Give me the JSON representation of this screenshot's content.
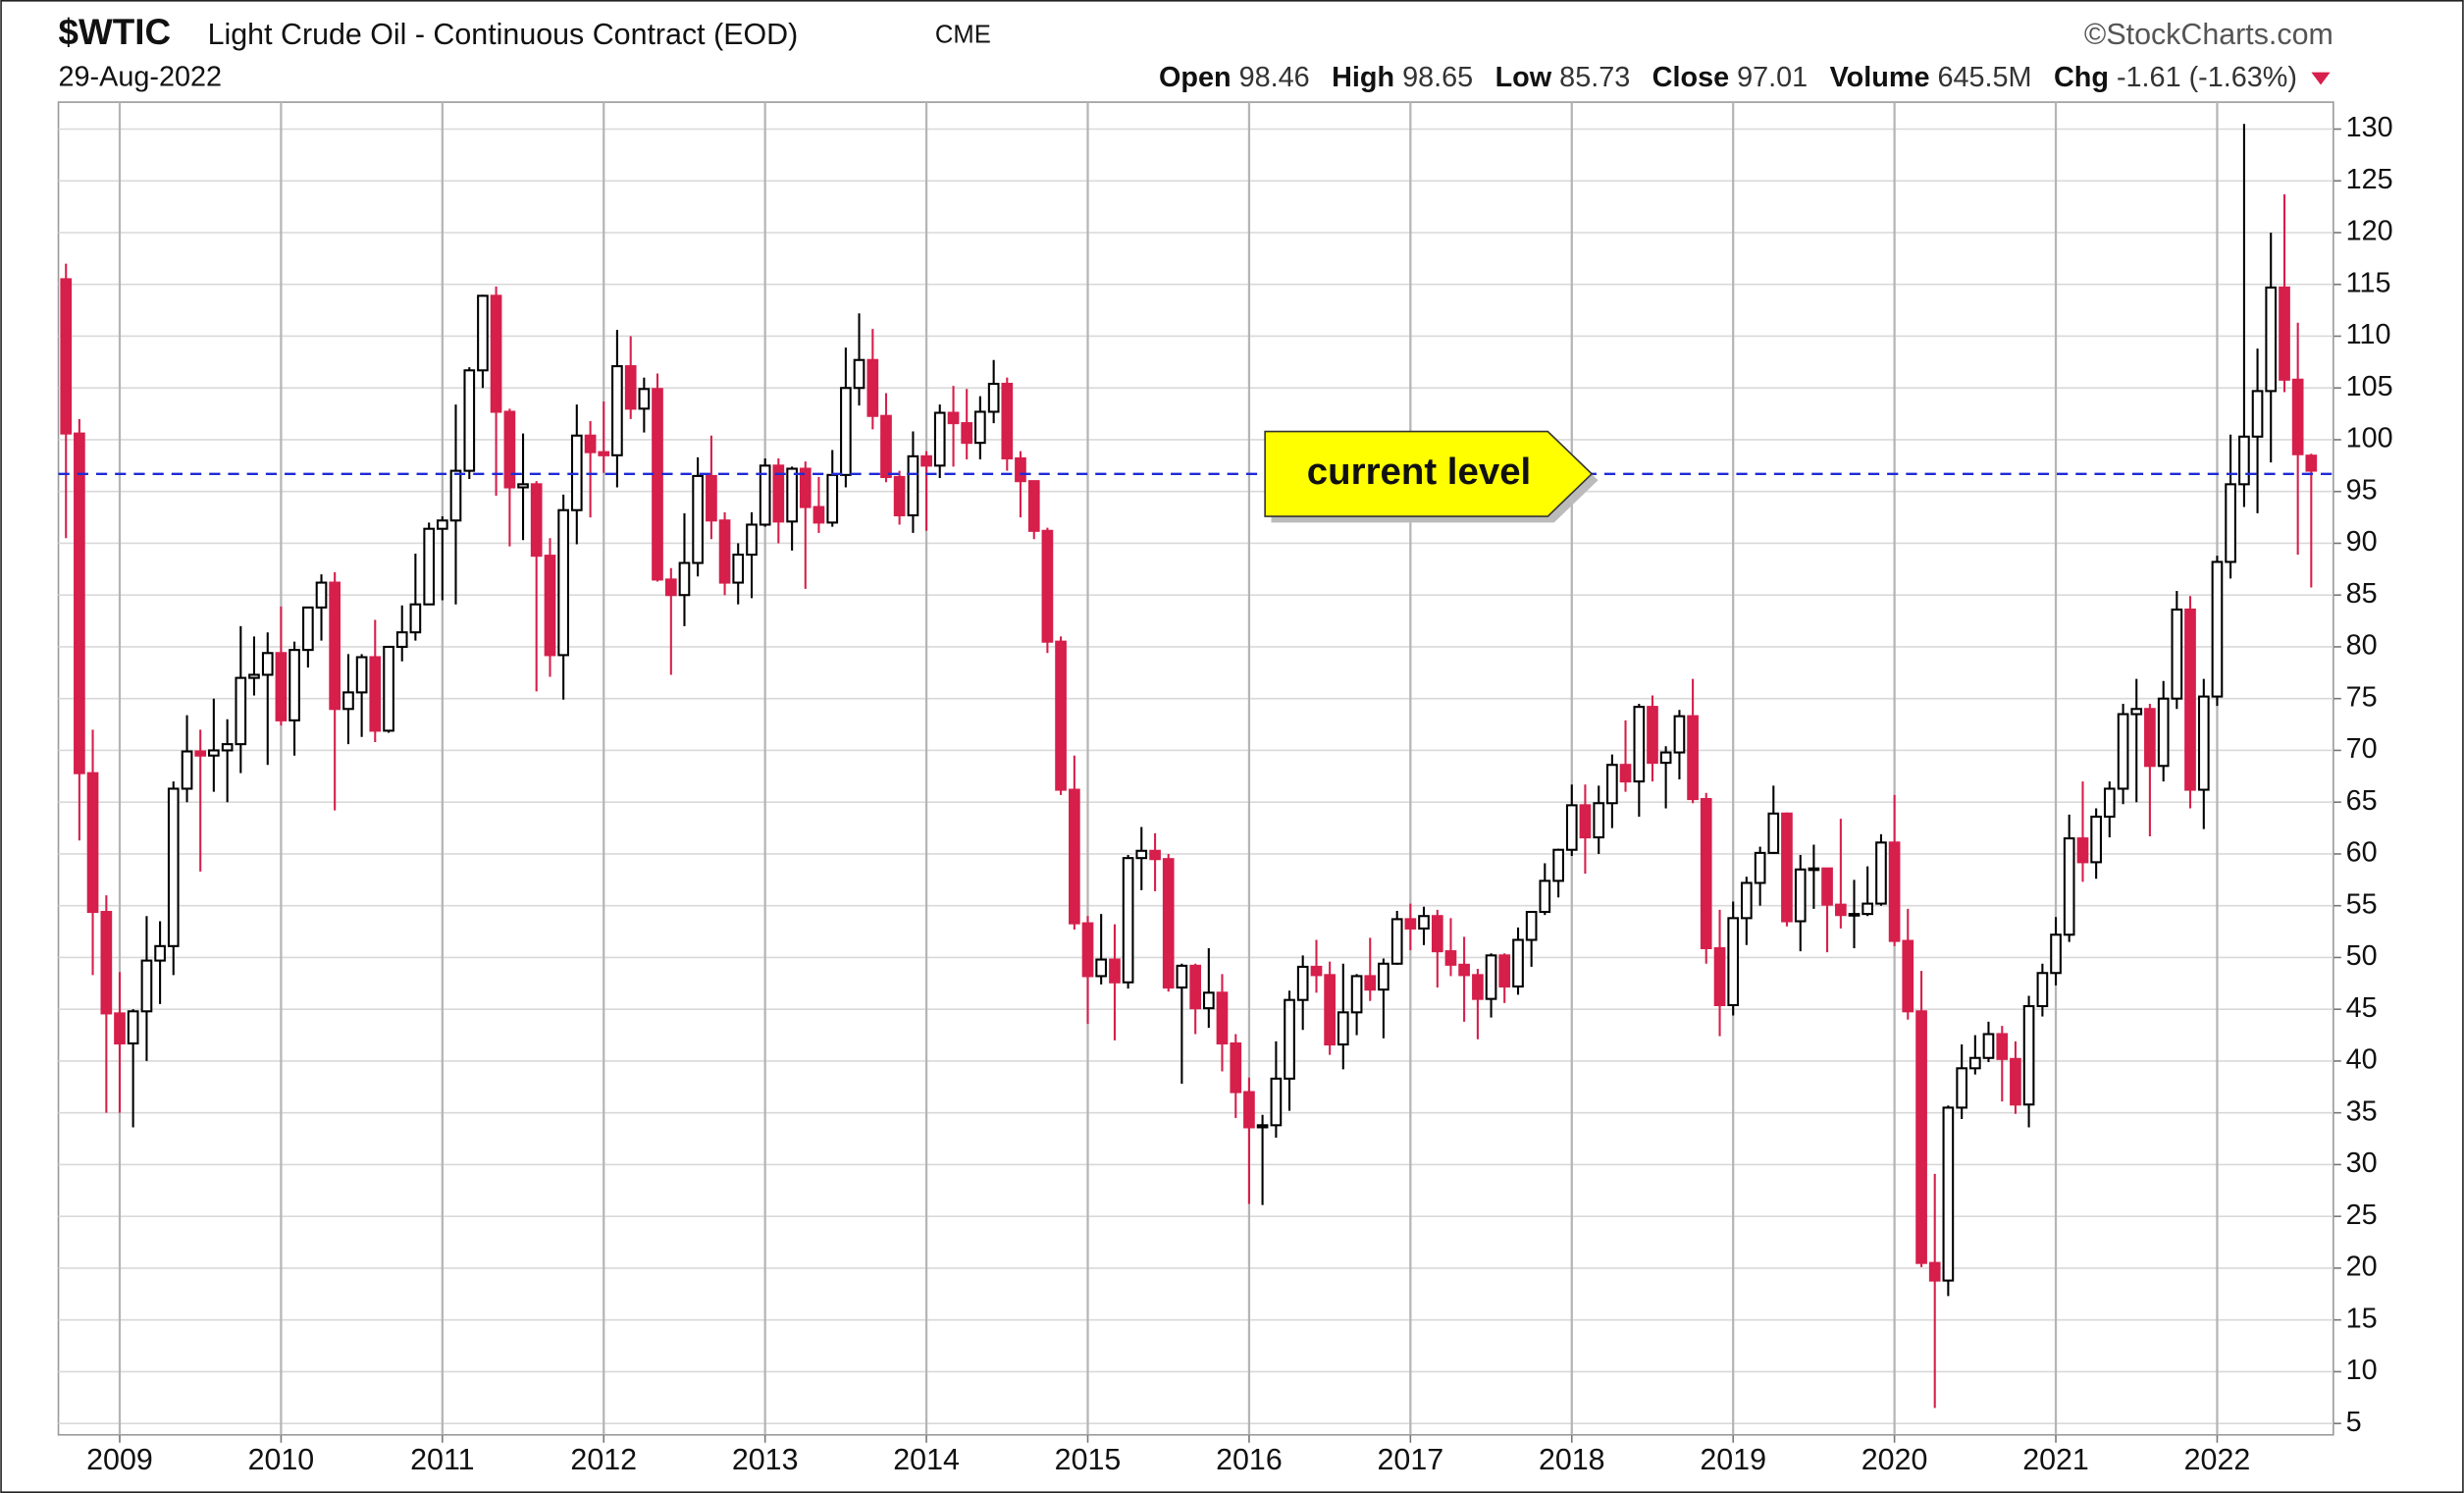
{
  "chart_data": {
    "type": "candlestick",
    "info": {
      "ticker": "$WTIC",
      "name": "Light Crude Oil - Continuous Contract (EOD)",
      "exchange": "CME",
      "source": "©StockCharts.com",
      "date": "29-Aug-2022",
      "stats": [
        {
          "label": "Open",
          "value": 98.46
        },
        {
          "label": "High",
          "value": 98.65
        },
        {
          "label": "Low",
          "value": 85.73
        },
        {
          "label": "Close",
          "value": 97.01
        },
        {
          "label": "Volume",
          "value": "645.5M"
        },
        {
          "label": "Chg",
          "value": "-1.61 (-1.63%)"
        }
      ]
    },
    "up_color": "#000000",
    "down_color": "#d61f4b",
    "reference_line": {
      "value": 96.7,
      "color": "#1f2bd6"
    },
    "annotation": {
      "text": "current level",
      "color": "#ffff00"
    },
    "grid": true,
    "xlim": [
      2008.62,
      2022.72
    ],
    "xticks": [
      2009,
      2010,
      2011,
      2012,
      2013,
      2014,
      2015,
      2016,
      2017,
      2018,
      2019,
      2020,
      2021,
      2022
    ],
    "ylim": [
      3.9,
      132.6
    ],
    "yticks": [
      5,
      10,
      15,
      20,
      25,
      30,
      35,
      40,
      45,
      50,
      55,
      60,
      65,
      70,
      75,
      80,
      85,
      90,
      95,
      100,
      105,
      110,
      115,
      120,
      125,
      130
    ],
    "x": [
      2008.667,
      2008.75,
      2008.833,
      2008.917,
      2009,
      2009.083,
      2009.167,
      2009.25,
      2009.333,
      2009.417,
      2009.5,
      2009.583,
      2009.667,
      2009.75,
      2009.833,
      2009.917,
      2010,
      2010.083,
      2010.167,
      2010.25,
      2010.333,
      2010.417,
      2010.5,
      2010.583,
      2010.667,
      2010.75,
      2010.833,
      2010.917,
      2011,
      2011.083,
      2011.167,
      2011.25,
      2011.333,
      2011.417,
      2011.5,
      2011.583,
      2011.667,
      2011.75,
      2011.833,
      2011.917,
      2012,
      2012.083,
      2012.167,
      2012.25,
      2012.333,
      2012.417,
      2012.5,
      2012.583,
      2012.667,
      2012.75,
      2012.833,
      2012.917,
      2013,
      2013.083,
      2013.167,
      2013.25,
      2013.333,
      2013.417,
      2013.5,
      2013.583,
      2013.667,
      2013.75,
      2013.833,
      2013.917,
      2014,
      2014.083,
      2014.167,
      2014.25,
      2014.333,
      2014.417,
      2014.5,
      2014.583,
      2014.667,
      2014.75,
      2014.833,
      2014.917,
      2015,
      2015.083,
      2015.167,
      2015.25,
      2015.333,
      2015.417,
      2015.5,
      2015.583,
      2015.667,
      2015.75,
      2015.833,
      2015.917,
      2016,
      2016.083,
      2016.167,
      2016.25,
      2016.333,
      2016.417,
      2016.5,
      2016.583,
      2016.667,
      2016.75,
      2016.833,
      2016.917,
      2017,
      2017.083,
      2017.167,
      2017.25,
      2017.333,
      2017.417,
      2017.5,
      2017.583,
      2017.667,
      2017.75,
      2017.833,
      2017.917,
      2018,
      2018.083,
      2018.167,
      2018.25,
      2018.333,
      2018.417,
      2018.5,
      2018.583,
      2018.667,
      2018.75,
      2018.833,
      2018.917,
      2019,
      2019.083,
      2019.167,
      2019.25,
      2019.333,
      2019.417,
      2019.5,
      2019.583,
      2019.667,
      2019.75,
      2019.833,
      2019.917,
      2020,
      2020.083,
      2020.167,
      2020.25,
      2020.333,
      2020.417,
      2020.5,
      2020.583,
      2020.667,
      2020.75,
      2020.833,
      2020.917,
      2021,
      2021.083,
      2021.167,
      2021.25,
      2021.333,
      2021.417,
      2021.5,
      2021.583,
      2021.667,
      2021.75,
      2021.833,
      2021.917,
      2022,
      2022.083,
      2022.167,
      2022.25,
      2022.333,
      2022.417,
      2022.5,
      2022.583
    ],
    "open": [
      115.5,
      100.6,
      67.8,
      54.4,
      44.6,
      41.7,
      44.8,
      49.7,
      51.1,
      66.3,
      69.9,
      69.5,
      70.0,
      70.6,
      77.0,
      77.3,
      79.4,
      72.9,
      79.7,
      83.8,
      86.2,
      74.0,
      75.6,
      79.0,
      71.9,
      80.0,
      81.4,
      84.1,
      91.4,
      92.2,
      97.0,
      106.7,
      113.9,
      102.7,
      95.4,
      95.7,
      88.8,
      79.2,
      93.2,
      100.4,
      98.8,
      98.5,
      107.1,
      103.0,
      104.9,
      86.5,
      85.0,
      88.1,
      96.5,
      92.2,
      86.2,
      88.9,
      91.8,
      97.5,
      92.1,
      97.2,
      93.5,
      92.0,
      96.6,
      105.0,
      107.7,
      102.3,
      96.4,
      92.7,
      98.4,
      97.5,
      102.6,
      101.6,
      99.7,
      102.7,
      105.4,
      98.2,
      96.0,
      91.2,
      80.5,
      66.2,
      53.3,
      48.2,
      49.8,
      47.6,
      59.6,
      60.3,
      59.5,
      47.1,
      49.2,
      45.1,
      46.6,
      41.7,
      37.0,
      33.6,
      33.8,
      38.3,
      45.9,
      49.1,
      48.3,
      41.6,
      44.7,
      48.2,
      46.9,
      49.4,
      53.7,
      52.8,
      54.0,
      50.6,
      49.3,
      48.3,
      46.0,
      50.2,
      47.2,
      51.7,
      54.4,
      57.4,
      60.4,
      64.7,
      61.6,
      64.9,
      68.6,
      67.0,
      74.2,
      68.8,
      69.8,
      73.3,
      65.3,
      50.9,
      45.4,
      53.8,
      57.2,
      60.1,
      63.9,
      53.5,
      58.5,
      58.6,
      55.1,
      54.1,
      54.2,
      55.2,
      61.1,
      51.6,
      44.8,
      20.5,
      18.8,
      35.5,
      39.3,
      40.3,
      42.6,
      40.2,
      35.8,
      45.3,
      48.5,
      52.2,
      61.5,
      59.2,
      63.6,
      66.3,
      73.5,
      74.0,
      68.5,
      75.0,
      83.6,
      66.2,
      75.2,
      88.2,
      95.7,
      100.3,
      104.7,
      114.7,
      105.8,
      98.46
    ],
    "high": [
      117.0,
      102.0,
      72.0,
      56.0,
      48.6,
      45.0,
      54.0,
      53.5,
      67.0,
      73.4,
      72.0,
      75.0,
      73.0,
      82.0,
      81.0,
      81.4,
      83.9,
      80.5,
      83.2,
      87.0,
      87.2,
      79.3,
      79.3,
      82.6,
      80.0,
      84.0,
      89.0,
      92.0,
      92.6,
      103.4,
      107.0,
      114.0,
      114.8,
      103.0,
      100.6,
      96.0,
      90.5,
      94.7,
      103.4,
      101.8,
      103.7,
      110.6,
      110.0,
      106.0,
      106.4,
      87.6,
      92.9,
      98.3,
      100.4,
      93.0,
      90.0,
      93.0,
      98.2,
      98.2,
      97.4,
      97.9,
      96.4,
      99.0,
      108.9,
      112.2,
      110.7,
      104.5,
      97.0,
      100.8,
      98.9,
      103.4,
      105.2,
      104.9,
      104.2,
      107.7,
      106.0,
      98.9,
      96.0,
      91.5,
      81.0,
      69.5,
      54.0,
      54.2,
      53.2,
      59.9,
      62.6,
      62.0,
      60.0,
      49.4,
      49.4,
      50.9,
      48.4,
      42.6,
      38.4,
      34.8,
      41.9,
      46.8,
      50.2,
      51.7,
      49.6,
      49.4,
      48.4,
      51.9,
      49.9,
      54.5,
      55.2,
      54.9,
      54.6,
      53.8,
      52.0,
      48.9,
      50.4,
      50.4,
      52.9,
      54.5,
      59.1,
      60.5,
      66.7,
      66.7,
      66.6,
      69.6,
      72.9,
      74.5,
      75.3,
      70.4,
      73.9,
      76.9,
      65.9,
      54.6,
      55.4,
      57.8,
      60.7,
      66.6,
      64.0,
      59.9,
      60.9,
      58.6,
      63.4,
      57.5,
      58.8,
      61.9,
      65.7,
      54.7,
      48.7,
      29.1,
      35.7,
      41.6,
      42.5,
      43.8,
      43.4,
      41.9,
      46.3,
      49.4,
      53.9,
      63.8,
      67.0,
      64.4,
      67.0,
      74.5,
      76.9,
      74.5,
      76.7,
      85.4,
      84.9,
      76.9,
      88.8,
      100.5,
      130.5,
      108.8,
      120.0,
      123.7,
      111.3,
      98.65
    ],
    "low": [
      90.5,
      61.3,
      48.3,
      35.0,
      35.0,
      33.6,
      40.0,
      45.5,
      48.3,
      65.0,
      58.3,
      66.0,
      65.0,
      67.8,
      75.3,
      68.6,
      72.4,
      69.5,
      78.0,
      80.6,
      64.2,
      70.6,
      71.3,
      70.8,
      71.7,
      78.6,
      80.6,
      84.1,
      84.5,
      84.1,
      96.2,
      105.0,
      94.6,
      89.7,
      90.3,
      75.7,
      77.1,
      74.9,
      89.9,
      92.5,
      96.8,
      95.4,
      102.0,
      100.7,
      86.3,
      77.3,
      82.0,
      86.8,
      90.4,
      85.0,
      84.1,
      84.7,
      91.6,
      90.0,
      89.3,
      85.6,
      91.0,
      91.6,
      95.4,
      103.3,
      101.0,
      95.9,
      91.8,
      91.0,
      91.2,
      96.3,
      97.4,
      98.1,
      98.1,
      101.6,
      97.0,
      92.5,
      90.4,
      79.4,
      65.7,
      52.7,
      43.6,
      47.4,
      42.0,
      47.0,
      56.5,
      56.4,
      46.7,
      37.8,
      42.6,
      43.2,
      39.0,
      34.5,
      26.2,
      26.1,
      32.6,
      35.2,
      43.0,
      46.6,
      40.6,
      39.2,
      42.5,
      45.8,
      42.2,
      49.3,
      50.7,
      51.2,
      47.1,
      48.2,
      43.8,
      42.1,
      44.2,
      45.6,
      46.4,
      49.1,
      54.1,
      55.8,
      59.8,
      58.1,
      60.0,
      62.5,
      66.0,
      63.6,
      67.0,
      64.4,
      67.2,
      64.9,
      49.4,
      42.4,
      44.4,
      51.2,
      55.0,
      60.0,
      53.0,
      50.6,
      54.7,
      50.5,
      52.8,
      50.9,
      54.0,
      55.0,
      51.1,
      44.0,
      20.1,
      6.5,
      17.3,
      34.4,
      38.7,
      39.9,
      36.1,
      34.9,
      33.6,
      44.3,
      47.3,
      51.5,
      57.3,
      57.6,
      61.6,
      64.8,
      65.0,
      61.7,
      67.0,
      74.0,
      64.4,
      62.4,
      74.3,
      86.6,
      93.5,
      92.9,
      97.8,
      104.6,
      88.9,
      85.73
    ],
    "close": [
      100.6,
      67.8,
      54.4,
      44.6,
      41.7,
      44.8,
      49.7,
      51.1,
      66.3,
      69.9,
      69.5,
      70.0,
      70.6,
      77.0,
      77.3,
      79.4,
      72.9,
      79.7,
      83.8,
      86.2,
      74.0,
      75.6,
      79.0,
      71.9,
      80.0,
      81.4,
      84.1,
      91.4,
      92.2,
      97.0,
      106.7,
      113.9,
      102.7,
      95.4,
      95.7,
      88.8,
      79.2,
      93.2,
      100.4,
      98.8,
      98.5,
      107.1,
      103.0,
      104.9,
      86.5,
      85.0,
      88.1,
      96.5,
      92.2,
      86.2,
      88.9,
      91.8,
      97.5,
      92.1,
      97.2,
      93.5,
      92.0,
      96.6,
      105.0,
      107.7,
      102.3,
      96.4,
      92.7,
      98.4,
      97.5,
      102.6,
      101.6,
      99.7,
      102.7,
      105.4,
      98.2,
      96.0,
      91.2,
      80.5,
      66.2,
      53.3,
      48.2,
      49.8,
      47.6,
      59.6,
      60.3,
      59.5,
      47.1,
      49.2,
      45.1,
      46.6,
      41.7,
      37.0,
      33.6,
      33.8,
      38.3,
      45.9,
      49.1,
      48.3,
      41.6,
      44.7,
      48.2,
      46.9,
      49.4,
      53.7,
      52.8,
      54.0,
      50.6,
      49.3,
      48.3,
      46.0,
      50.2,
      47.2,
      51.7,
      54.4,
      57.4,
      60.4,
      64.7,
      61.6,
      64.9,
      68.6,
      67.0,
      74.2,
      68.8,
      69.8,
      73.3,
      65.3,
      50.9,
      45.4,
      53.8,
      57.2,
      60.1,
      63.9,
      53.5,
      58.5,
      58.6,
      55.1,
      54.1,
      54.2,
      55.2,
      61.1,
      51.6,
      44.8,
      20.5,
      18.8,
      35.5,
      39.3,
      40.3,
      42.6,
      40.2,
      35.8,
      45.3,
      48.5,
      52.2,
      61.5,
      59.2,
      63.6,
      66.3,
      73.5,
      74.0,
      68.5,
      75.0,
      83.6,
      66.2,
      75.2,
      88.2,
      95.7,
      100.3,
      104.7,
      114.7,
      105.8,
      98.6,
      97.01
    ]
  }
}
